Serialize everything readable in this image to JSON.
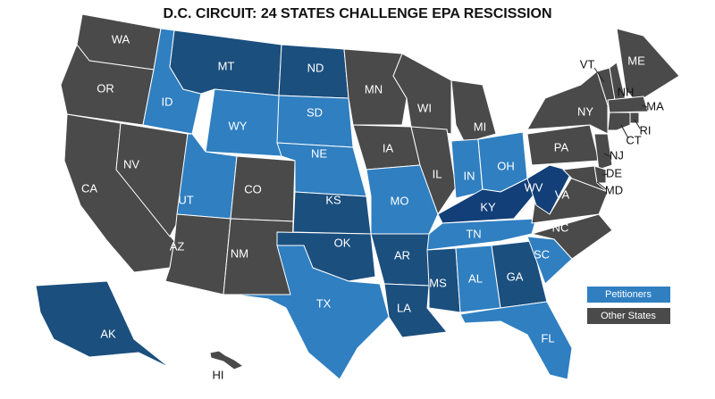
{
  "title": "D.C. CIRCUIT: 24 STATES CHALLENGE EPA RESCISSION",
  "states": [
    {
      "label": "WA",
      "fill": "#4a4a4a"
    },
    {
      "label": "OR",
      "fill": "#4a4a4a"
    },
    {
      "label": "CA",
      "fill": "#4a4a4a"
    },
    {
      "label": "NV",
      "fill": "#4a4a4a"
    },
    {
      "label": "ID",
      "fill": "#2f7fc1"
    },
    {
      "label": "MT",
      "fill": "#1b4f7e"
    },
    {
      "label": "WY",
      "fill": "#2f7fc1"
    },
    {
      "label": "UT",
      "fill": "#2f7fc1"
    },
    {
      "label": "AZ",
      "fill": "#4a4a4a"
    },
    {
      "label": "CO",
      "fill": "#4a4a4a"
    },
    {
      "label": "NM",
      "fill": "#4a4a4a"
    },
    {
      "label": "ND",
      "fill": "#1b4f7e"
    },
    {
      "label": "SD",
      "fill": "#2f7fc1"
    },
    {
      "label": "NE",
      "fill": "#2f7fc1"
    },
    {
      "label": "KS",
      "fill": "#1b4f7e"
    },
    {
      "label": "OK",
      "fill": "#1b4f7e"
    },
    {
      "label": "TX",
      "fill": "#2f7fc1"
    },
    {
      "label": "MN",
      "fill": "#4a4a4a"
    },
    {
      "label": "IA",
      "fill": "#4a4a4a"
    },
    {
      "label": "MO",
      "fill": "#2f7fc1"
    },
    {
      "label": "AR",
      "fill": "#1b4f7e"
    },
    {
      "label": "LA",
      "fill": "#1b4f7e"
    },
    {
      "label": "WI",
      "fill": "#4a4a4a"
    },
    {
      "label": "IL",
      "fill": "#4a4a4a"
    },
    {
      "label": "MI",
      "fill": "#4a4a4a"
    },
    {
      "label": "IN",
      "fill": "#2f7fc1"
    },
    {
      "label": "OH",
      "fill": "#2f7fc1"
    },
    {
      "label": "KY",
      "fill": "#123f78"
    },
    {
      "label": "TN",
      "fill": "#2f7fc1"
    },
    {
      "label": "MS",
      "fill": "#1b4f7e"
    },
    {
      "label": "AL",
      "fill": "#2f7fc1"
    },
    {
      "label": "GA",
      "fill": "#1b4f7e"
    },
    {
      "label": "FL",
      "fill": "#2f7fc1"
    },
    {
      "label": "SC",
      "fill": "#2f7fc1"
    },
    {
      "label": "NC",
      "fill": "#4a4a4a"
    },
    {
      "label": "VA",
      "fill": "#4a4a4a"
    },
    {
      "label": "WV",
      "fill": "#123f78"
    },
    {
      "label": "PA",
      "fill": "#4a4a4a"
    },
    {
      "label": "NY",
      "fill": "#4a4a4a"
    },
    {
      "label": "VT",
      "fill": "#4a4a4a"
    },
    {
      "label": "NH",
      "fill": "#4a4a4a"
    },
    {
      "label": "ME",
      "fill": "#4a4a4a"
    },
    {
      "label": "MA",
      "fill": "#4a4a4a"
    },
    {
      "label": "CT",
      "fill": "#4a4a4a"
    },
    {
      "label": "RI",
      "fill": "#4a4a4a"
    },
    {
      "label": "NJ",
      "fill": "#4a4a4a"
    },
    {
      "label": "DE",
      "fill": "#4a4a4a"
    },
    {
      "label": "MD",
      "fill": "#4a4a4a"
    },
    {
      "label": "AK",
      "fill": "#1b4f7e"
    },
    {
      "label": "HI",
      "fill": "#4a4a4a"
    }
  ],
  "legend": [
    {
      "name": "Petitioners",
      "color": "#2f7fc1"
    },
    {
      "name": "Other States",
      "color": "#4a4a4a"
    }
  ]
}
